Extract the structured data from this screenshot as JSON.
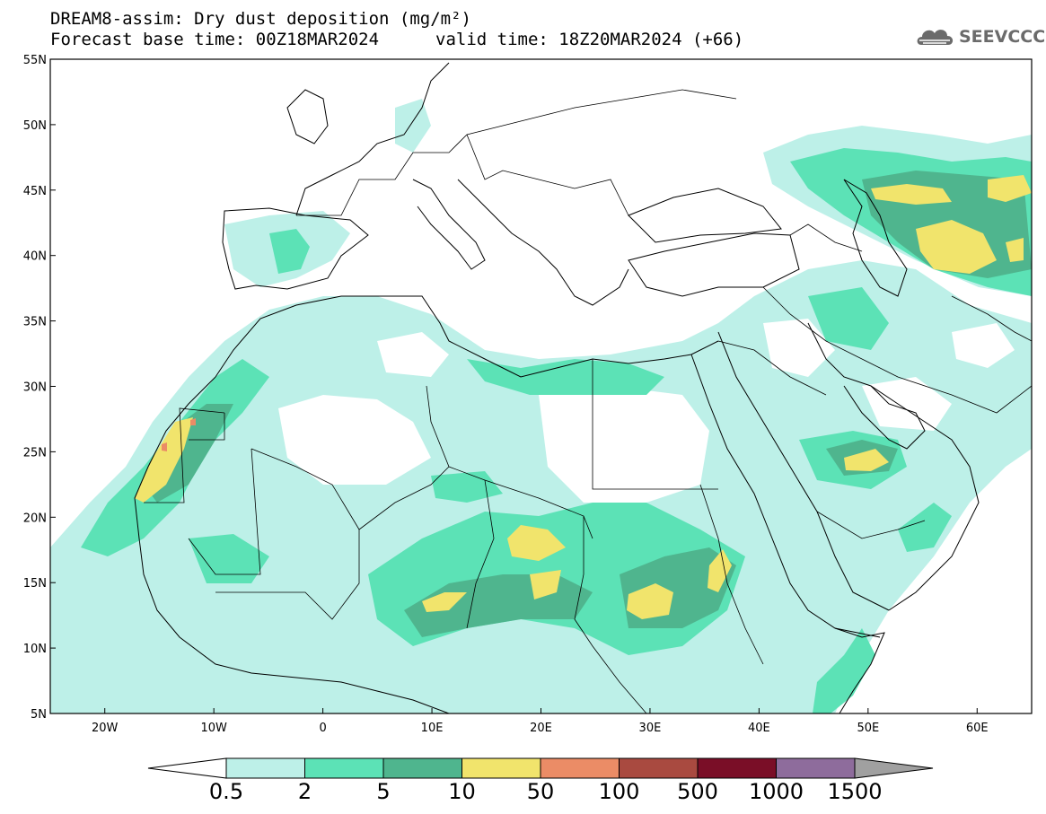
{
  "title": {
    "line1": "DREAM8-assim: Dry dust deposition (mg/m²)",
    "base_time": "Forecast base time: 00Z18MAR2024",
    "valid_time": "valid time: 18Z20MAR2024 (+66)"
  },
  "logo": {
    "text": "SEEVCCC",
    "icon": "cloud-logo-icon"
  },
  "map": {
    "projection": "lat-lon",
    "lon_range": [
      -25,
      65
    ],
    "lat_range": [
      5,
      55
    ],
    "lat_ticks": [
      {
        "value": 55,
        "label": "55N"
      },
      {
        "value": 50,
        "label": "50N"
      },
      {
        "value": 45,
        "label": "45N"
      },
      {
        "value": 40,
        "label": "40N"
      },
      {
        "value": 35,
        "label": "35N"
      },
      {
        "value": 30,
        "label": "30N"
      },
      {
        "value": 25,
        "label": "25N"
      },
      {
        "value": 20,
        "label": "20N"
      },
      {
        "value": 15,
        "label": "15N"
      },
      {
        "value": 10,
        "label": "10N"
      },
      {
        "value": 5,
        "label": "5N"
      }
    ],
    "lon_ticks": [
      {
        "value": -20,
        "label": "20W"
      },
      {
        "value": -10,
        "label": "10W"
      },
      {
        "value": 0,
        "label": "0"
      },
      {
        "value": 10,
        "label": "10E"
      },
      {
        "value": 20,
        "label": "20E"
      },
      {
        "value": 30,
        "label": "30E"
      },
      {
        "value": 40,
        "label": "40E"
      },
      {
        "value": 50,
        "label": "50E"
      },
      {
        "value": 60,
        "label": "60E"
      }
    ]
  },
  "colorbar": {
    "under_color": "#ffffff",
    "over_color": "#a0a0a0",
    "bins": [
      {
        "color": "#bdf0e8"
      },
      {
        "color": "#5ce2b6"
      },
      {
        "color": "#4fb58e"
      },
      {
        "color": "#f1e46c"
      },
      {
        "color": "#eb8c66"
      },
      {
        "color": "#a94a40"
      },
      {
        "color": "#7a0e27"
      },
      {
        "color": "#8e6c9c"
      }
    ],
    "labels": [
      "0.5",
      "2",
      "5",
      "10",
      "50",
      "100",
      "500",
      "1000",
      "1500"
    ]
  }
}
